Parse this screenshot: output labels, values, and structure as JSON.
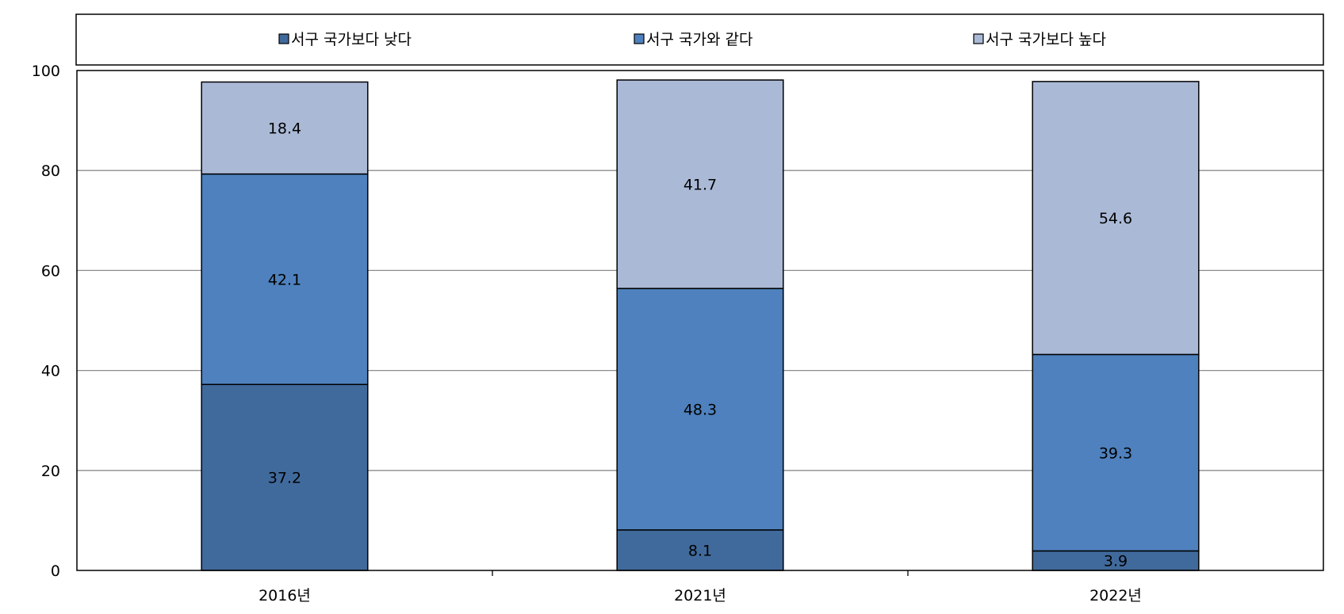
{
  "chart_data": {
    "type": "bar",
    "stacked": true,
    "categories": [
      "2016년",
      "2021년",
      "2022년"
    ],
    "series": [
      {
        "name": "서구 국가보다 낮다",
        "values": [
          37.2,
          8.1,
          3.9
        ],
        "color": "#416A9C"
      },
      {
        "name": "서구 국가와 같다",
        "values": [
          42.1,
          48.3,
          39.3
        ],
        "color": "#4E81BD"
      },
      {
        "name": "서구 국가보다 높다",
        "values": [
          18.4,
          41.7,
          54.6
        ],
        "color": "#AAB9D6"
      }
    ],
    "ylim": [
      0,
      100
    ],
    "yticks": [
      "0",
      "20",
      "40",
      "60",
      "80",
      "100"
    ],
    "grid": true,
    "legend_position": "top"
  }
}
